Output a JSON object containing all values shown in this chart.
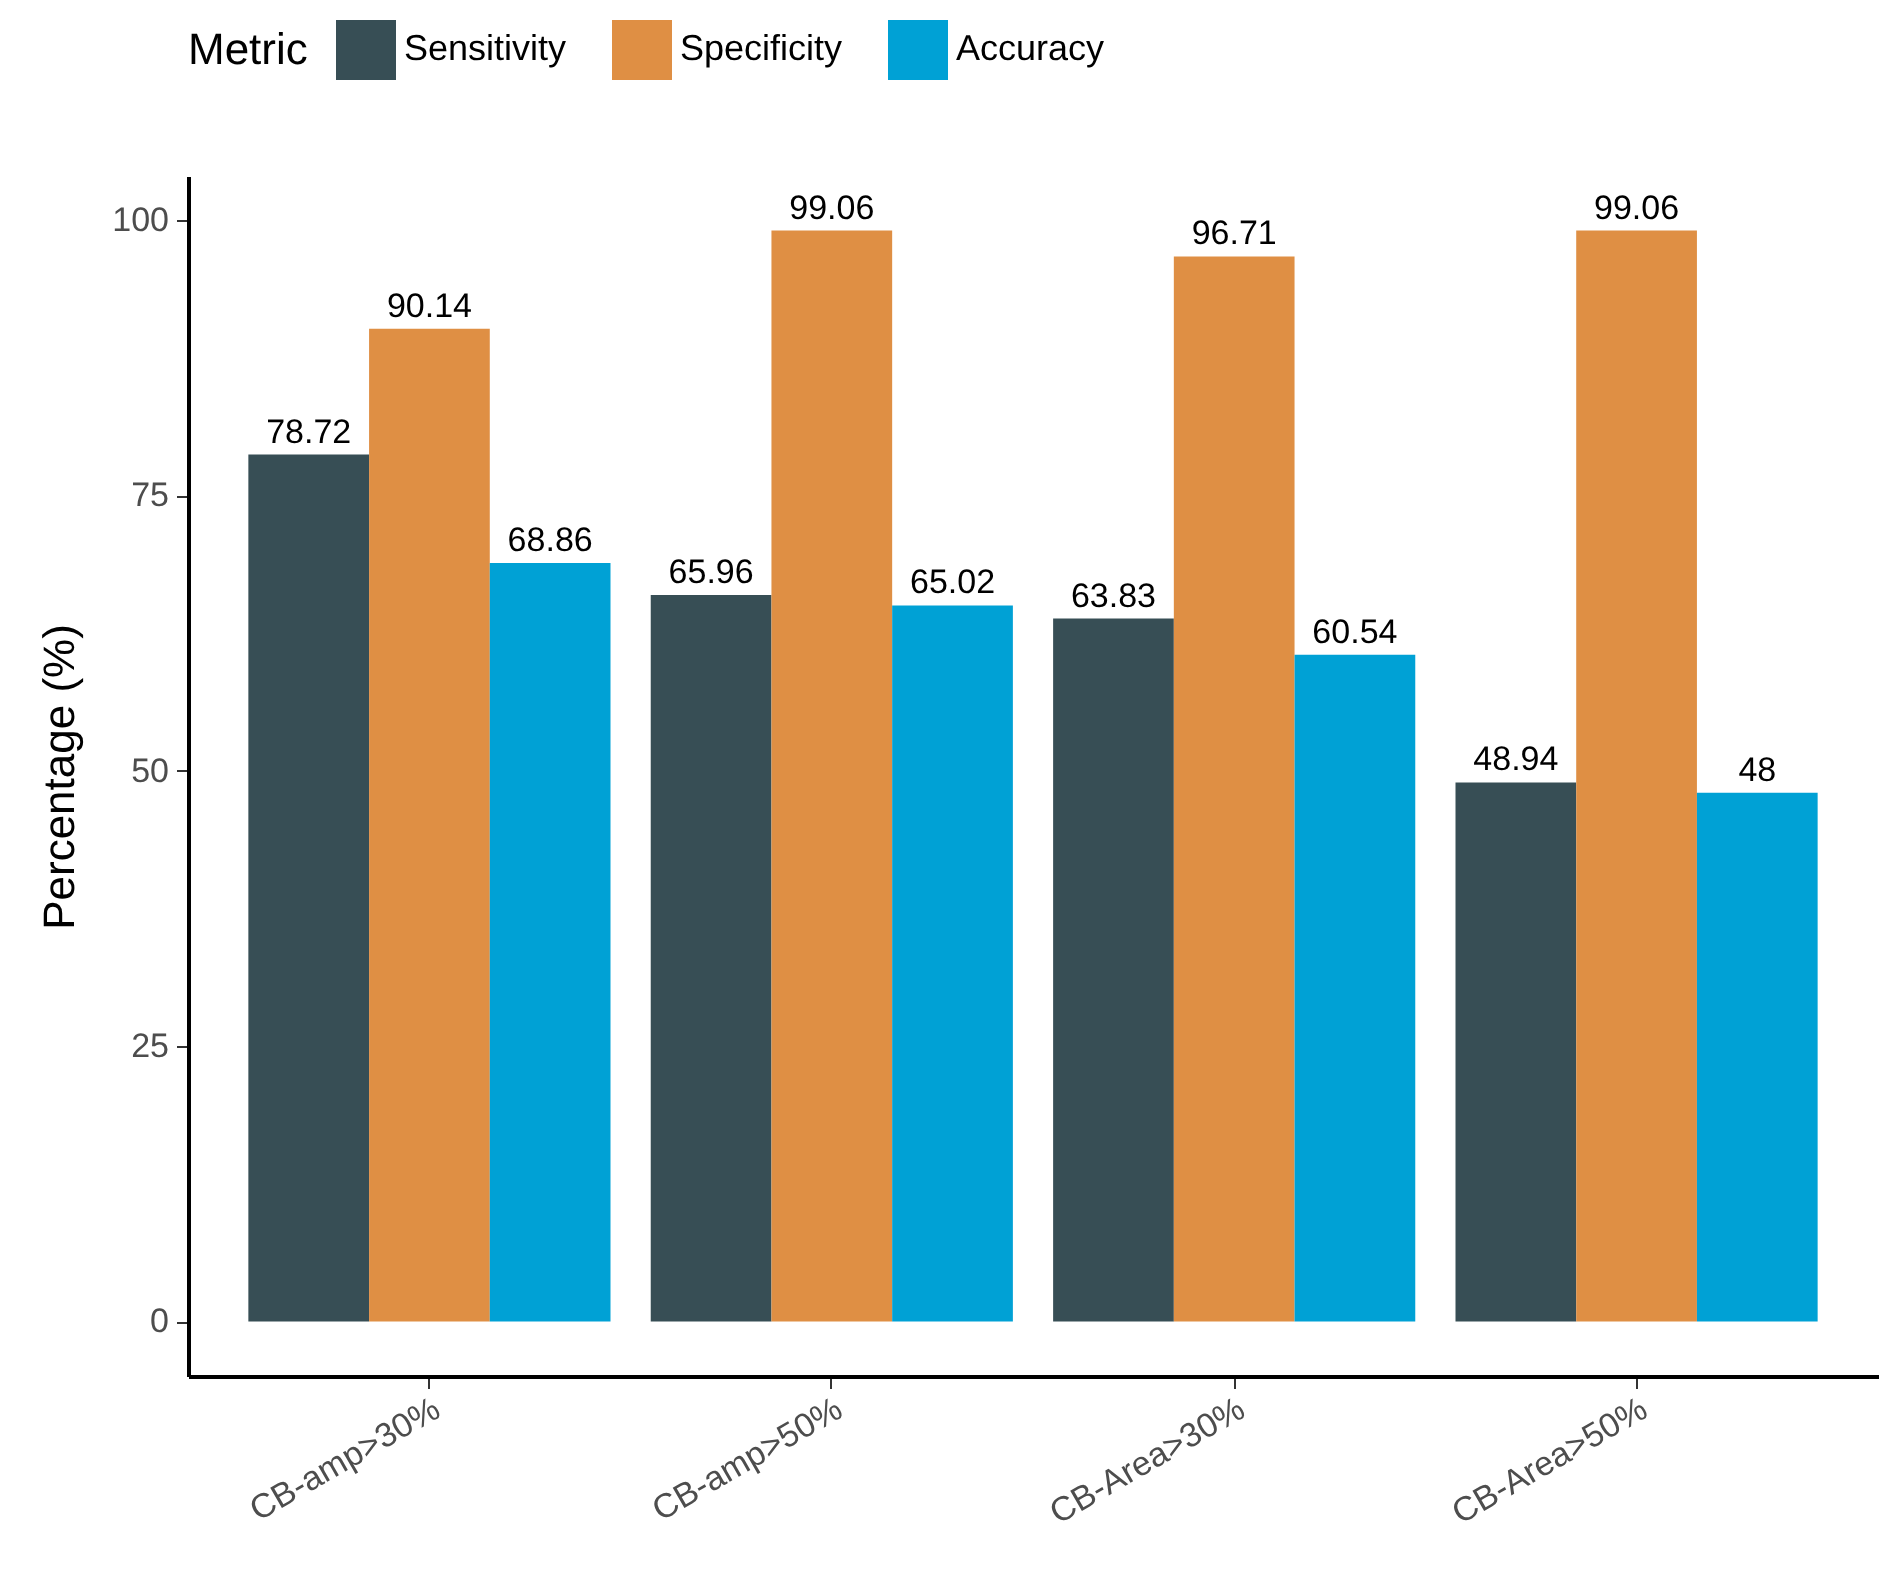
{
  "chart_data": {
    "type": "bar",
    "ylabel": "Percentage (%)",
    "legend_title": "Metric",
    "legend": "top",
    "categories": [
      "CB-amp>30%",
      "CB-amp>50%",
      "CB-Area>30%",
      "CB-Area>50%"
    ],
    "series": [
      {
        "name": "Sensitivity",
        "color": "#374e55",
        "values": [
          78.72,
          65.96,
          63.83,
          48.94
        ]
      },
      {
        "name": "Specificity",
        "color": "#df8f44",
        "values": [
          90.14,
          99.06,
          96.71,
          99.06
        ]
      },
      {
        "name": "Accuracy",
        "color": "#00a1d5",
        "values": [
          68.86,
          65.02,
          60.54,
          48
        ]
      }
    ],
    "ylim": [
      -4.95,
      104.01
    ],
    "yticks": [
      0,
      25,
      50,
      75,
      100
    ],
    "grid": false,
    "data_labels": true
  }
}
